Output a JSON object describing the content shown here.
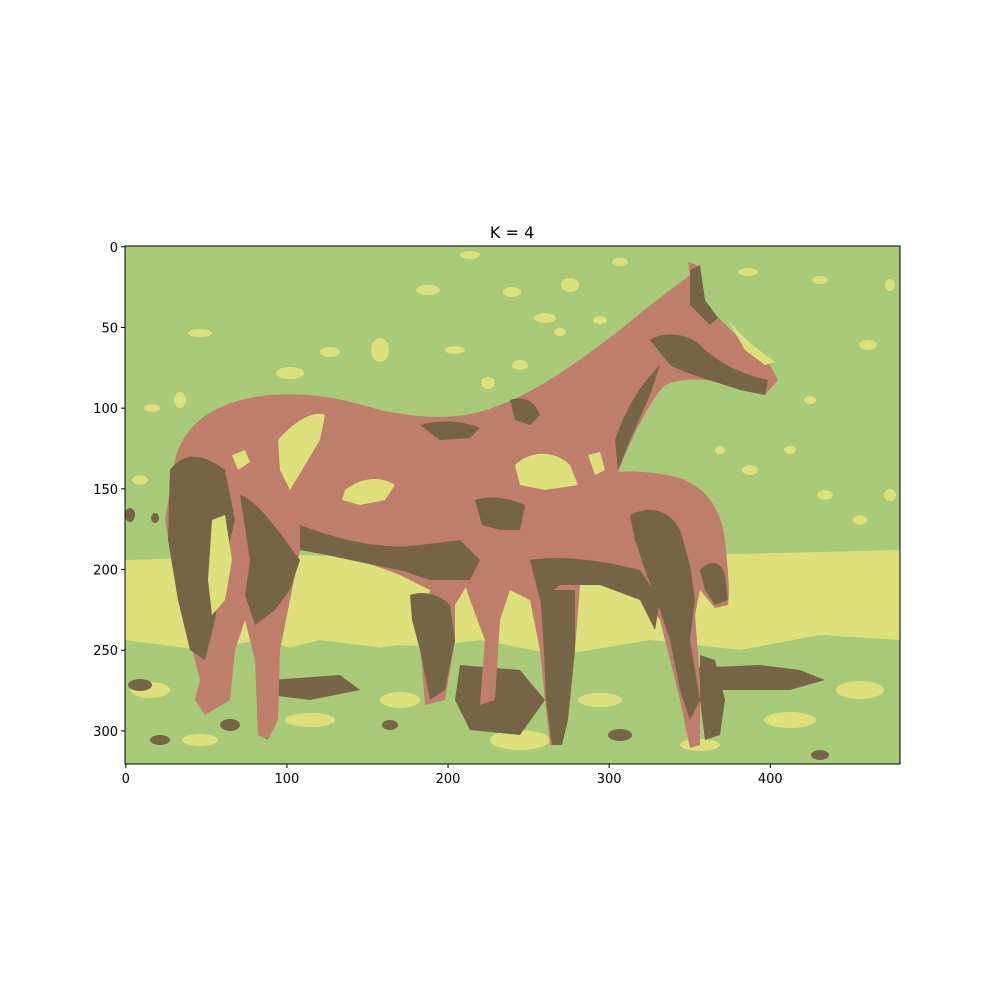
{
  "figure": {
    "title": "K = 4"
  },
  "image": {
    "description_colors": {
      "grass_green": "#a8c978",
      "yellow_light": "#dde07a",
      "horse_brown": "#bf7d6b",
      "shadow_dark": "#756446"
    }
  },
  "axes": {
    "x_ticks": [
      {
        "value": 0,
        "label": "0"
      },
      {
        "value": 100,
        "label": "100"
      },
      {
        "value": 200,
        "label": "200"
      },
      {
        "value": 300,
        "label": "300"
      },
      {
        "value": 400,
        "label": "400"
      }
    ],
    "y_ticks": [
      {
        "value": 0,
        "label": "0"
      },
      {
        "value": 50,
        "label": "50"
      },
      {
        "value": 100,
        "label": "100"
      },
      {
        "value": 150,
        "label": "150"
      },
      {
        "value": 200,
        "label": "200"
      },
      {
        "value": 250,
        "label": "250"
      },
      {
        "value": 300,
        "label": "300"
      }
    ],
    "x_range": [
      0,
      481
    ],
    "y_range": [
      0,
      321
    ]
  }
}
